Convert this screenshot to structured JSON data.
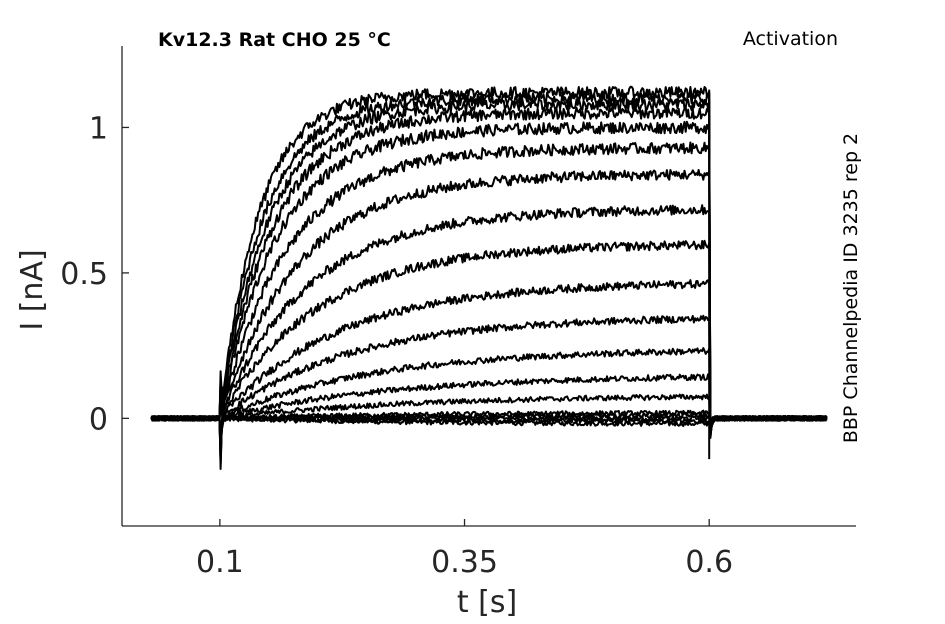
{
  "chart_data": {
    "type": "line",
    "title_left": "Kv12.3  Rat  CHO  25 °C",
    "title_right": "Activation",
    "side_label": "BBP Channelpedia ID 3235 rep 2",
    "xlabel": "t [s]",
    "ylabel": "I [nA]",
    "xlim": [
      -0.0,
      0.75
    ],
    "ylim": [
      -0.37,
      1.28
    ],
    "xticks": [
      0.1,
      0.35,
      0.6
    ],
    "xtick_labels": [
      "0.1",
      "0.35",
      "0.6"
    ],
    "yticks": [
      0,
      0.5,
      1
    ],
    "ytick_labels": [
      "0",
      "0.5",
      "1"
    ],
    "grid": false,
    "series_shape": {
      "t_start": 0.03,
      "pulse_on": 0.1,
      "pulse_off": 0.6,
      "t_end": 0.72
    },
    "series": [
      {
        "steady": -0.02,
        "tau": 0.2
      },
      {
        "steady": -0.01,
        "tau": 0.2
      },
      {
        "steady": 0.0,
        "tau": 0.2
      },
      {
        "steady": 0.01,
        "tau": 0.2
      },
      {
        "steady": 0.02,
        "tau": 0.2
      },
      {
        "steady": 0.08,
        "tau": 0.19
      },
      {
        "steady": 0.15,
        "tau": 0.17
      },
      {
        "steady": 0.24,
        "tau": 0.15
      },
      {
        "steady": 0.35,
        "tau": 0.13
      },
      {
        "steady": 0.47,
        "tau": 0.12
      },
      {
        "steady": 0.6,
        "tau": 0.1
      },
      {
        "steady": 0.72,
        "tau": 0.09
      },
      {
        "steady": 0.84,
        "tau": 0.08
      },
      {
        "steady": 0.93,
        "tau": 0.07
      },
      {
        "steady": 1.0,
        "tau": 0.06
      },
      {
        "steady": 1.05,
        "tau": 0.055
      },
      {
        "steady": 1.08,
        "tau": 0.05
      },
      {
        "steady": 1.1,
        "tau": 0.045
      },
      {
        "steady": 1.12,
        "tau": 0.04
      }
    ]
  }
}
